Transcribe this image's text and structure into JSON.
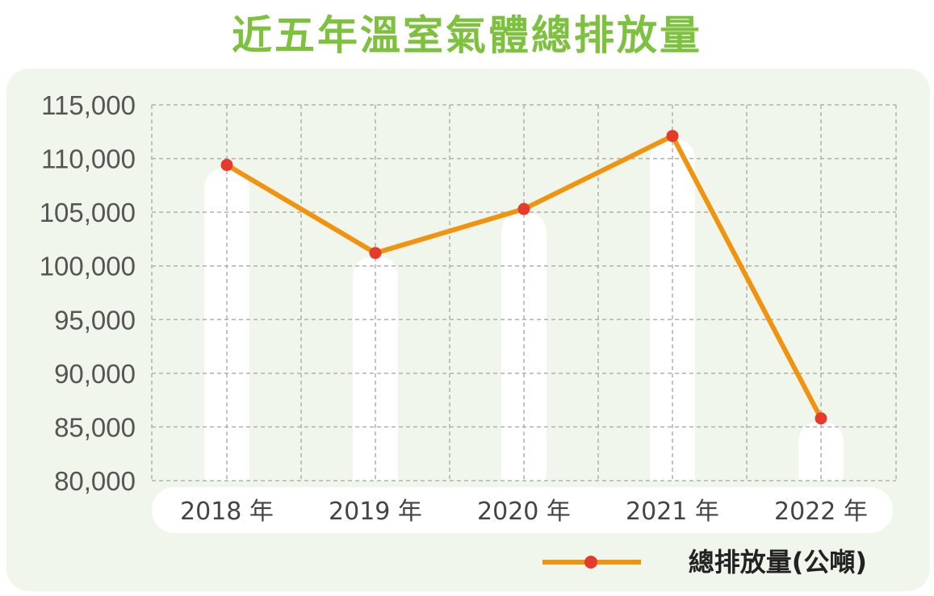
{
  "chart_data": {
    "type": "line",
    "title": "近五年溫室氣體總排放量",
    "categories": [
      "2018 年",
      "2019 年",
      "2020 年",
      "2021 年",
      "2022 年"
    ],
    "series": [
      {
        "name": "總排放量(公噸)",
        "values": [
          109400,
          101200,
          105300,
          112100,
          85800
        ]
      }
    ],
    "y_ticks": [
      "80,000",
      "85,000",
      "90,000",
      "95,000",
      "100,000",
      "105,000",
      "110,000",
      "115,000"
    ],
    "ylim": [
      80000,
      115000
    ],
    "grid": true,
    "legend_position": "bottom-right",
    "colors": {
      "title": "#7dc13f",
      "line": "#f0940f",
      "marker": "#e63b2a",
      "panel": "#f1f6ec",
      "grid": "#b0b0b0",
      "bars": "#ffffff"
    }
  }
}
